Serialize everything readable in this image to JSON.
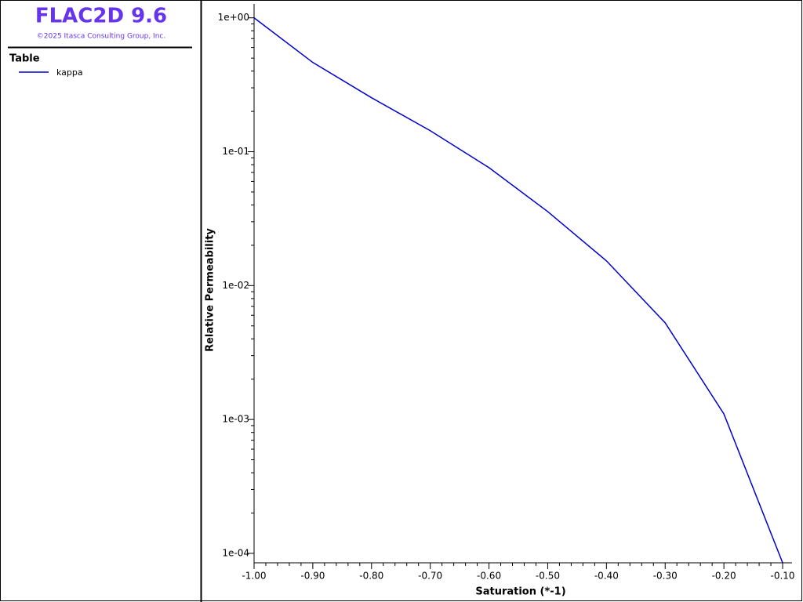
{
  "app": {
    "title": "FLAC2D 9.6",
    "copyright": "©2025 Itasca Consulting Group, Inc."
  },
  "chart_data": {
    "type": "line",
    "legend_title": "Table",
    "x_label": "Saturation (*-1)",
    "y_label": "Relative Permeability",
    "log_y": true,
    "grid": false,
    "x": [
      -1.0,
      -0.9,
      -0.8,
      -0.7,
      -0.6,
      -0.5,
      -0.4,
      -0.3,
      -0.2,
      -0.1
    ],
    "series": [
      {
        "name": "kappa",
        "color": "#0000cd",
        "values": [
          1.0,
          0.464,
          0.253,
          0.1435,
          0.076,
          0.0357,
          0.0153,
          0.00527,
          0.0011,
          8.5e-05
        ]
      }
    ],
    "xlim": [
      -1.0,
      -0.084
    ],
    "ylim": [
      8.5e-05,
      1.27
    ],
    "xticks": [
      {
        "value": -1.0,
        "label": "-1.00"
      },
      {
        "value": -0.9,
        "label": "-0.90"
      },
      {
        "value": -0.8,
        "label": "-0.80"
      },
      {
        "value": -0.7,
        "label": "-0.70"
      },
      {
        "value": -0.6,
        "label": "-0.60"
      },
      {
        "value": -0.5,
        "label": "-0.50"
      },
      {
        "value": -0.4,
        "label": "-0.40"
      },
      {
        "value": -0.3,
        "label": "-0.30"
      },
      {
        "value": -0.2,
        "label": "-0.20"
      },
      {
        "value": -0.1,
        "label": "-0.10"
      }
    ],
    "xminorticks": [
      -0.98,
      -0.96,
      -0.94,
      -0.92,
      -0.88,
      -0.86,
      -0.84,
      -0.82,
      -0.78,
      -0.76,
      -0.74,
      -0.72,
      -0.68,
      -0.66,
      -0.64,
      -0.62,
      -0.58,
      -0.56,
      -0.54,
      -0.52,
      -0.48,
      -0.46,
      -0.44,
      -0.42,
      -0.38,
      -0.36,
      -0.34,
      -0.32,
      -0.28,
      -0.26,
      -0.24,
      -0.22,
      -0.18,
      -0.16,
      -0.14,
      -0.12
    ],
    "yticks": [
      {
        "value": 1,
        "label": "1e+00"
      },
      {
        "value": 0.1,
        "label": "1e-01"
      },
      {
        "value": 0.01,
        "label": "1e-02"
      },
      {
        "value": 0.001,
        "label": "1e-03"
      },
      {
        "value": 0.0001,
        "label": "1e-04"
      }
    ],
    "yminorticks": [
      0.0002,
      0.0003,
      0.0004,
      0.0005,
      0.0006,
      0.0007,
      0.0008,
      0.0009,
      0.002,
      0.003,
      0.004,
      0.005,
      0.006,
      0.007,
      0.008,
      0.009,
      0.02,
      0.03,
      0.04,
      0.05,
      0.06,
      0.07,
      0.08,
      0.09,
      0.2,
      0.3,
      0.4,
      0.5,
      0.6,
      0.7,
      0.8,
      0.9
    ]
  }
}
